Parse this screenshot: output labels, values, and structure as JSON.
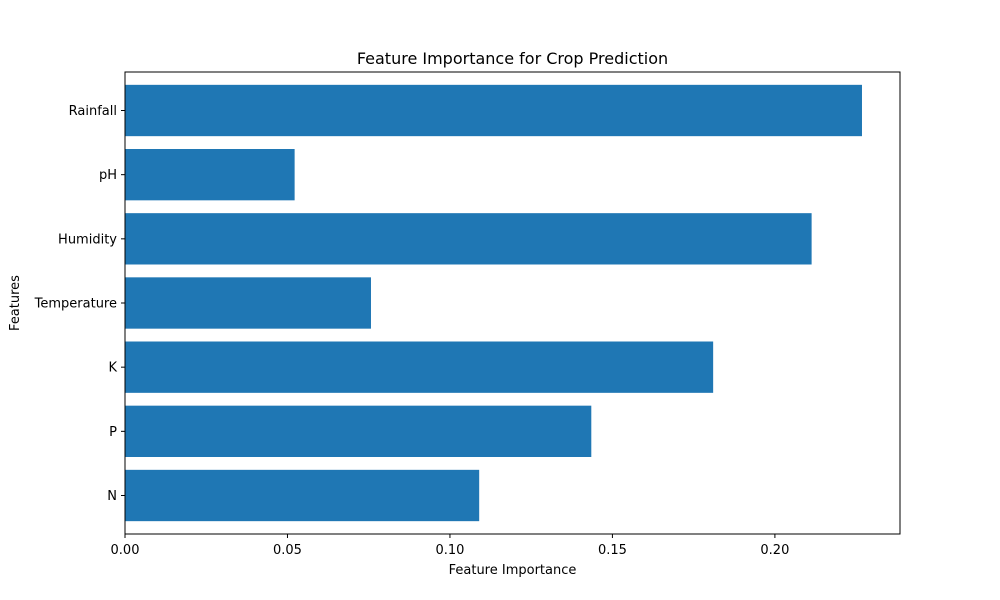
{
  "chart_data": {
    "type": "bar",
    "orientation": "horizontal",
    "title": "Feature Importance for Crop Prediction",
    "xlabel": "Feature Importance",
    "ylabel": "Features",
    "categories": [
      "N",
      "P",
      "K",
      "Temperature",
      "Humidity",
      "pH",
      "Rainfall"
    ],
    "values": [
      0.109,
      0.1435,
      0.181,
      0.0757,
      0.2113,
      0.0522,
      0.2268
    ],
    "xlim": [
      0,
      0.2385
    ],
    "xticks": [
      0.0,
      0.05,
      0.1,
      0.15,
      0.2
    ],
    "xtick_labels": [
      "0.00",
      "0.05",
      "0.10",
      "0.15",
      "0.20"
    ],
    "grid": false,
    "bar_color": "#1f77b4"
  }
}
